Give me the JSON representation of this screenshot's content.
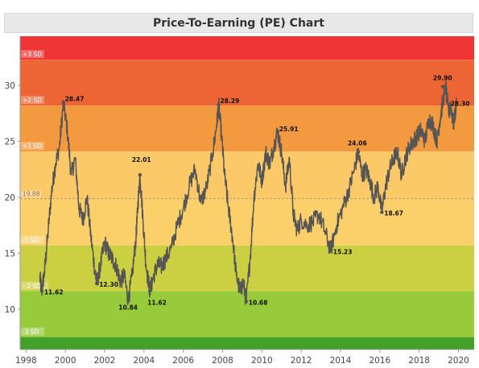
{
  "chart_data": {
    "type": "line",
    "title": "Price-To-Earning (PE) Chart",
    "xlabel": "",
    "ylabel": "",
    "xlim": [
      1997.7,
      2020.8
    ],
    "ylim": [
      6.4,
      34.4
    ],
    "x_ticks": [
      "1998",
      "2000",
      "2002",
      "2004",
      "2006",
      "2008",
      "2010",
      "2012",
      "2014",
      "2016",
      "2018",
      "2020"
    ],
    "y_ticks": [
      "10",
      "15",
      "20",
      "25",
      "30"
    ],
    "mean": {
      "label": "19.88",
      "value": 19.88
    },
    "bands": [
      {
        "label": "+3 SD",
        "from": 32.3,
        "to": 34.4,
        "color": "#ee3434"
      },
      {
        "label": "+2 SD",
        "from": 28.2,
        "to": 32.3,
        "color": "#ee6535"
      },
      {
        "label": "+1 SD",
        "from": 24.1,
        "to": 28.2,
        "color": "#f3993f"
      },
      {
        "label": "",
        "from": 19.88,
        "to": 24.1,
        "color": "#fbc968"
      },
      {
        "label": "-1 SD",
        "from": 15.7,
        "to": 19.88,
        "color": "#fbcf6a"
      },
      {
        "label": "- 2 SD",
        "from": 11.6,
        "to": 15.7,
        "color": "#cbcf42"
      },
      {
        "label": "-3 SD",
        "from": 7.5,
        "to": 11.6,
        "color": "#97cb3b"
      },
      {
        "label": "",
        "from": 6.4,
        "to": 7.5,
        "color": "#45a02a"
      }
    ],
    "annotations": [
      {
        "x": 1998.8,
        "y": 11.62,
        "label": "11.62"
      },
      {
        "x": 1999.9,
        "y": 28.47,
        "label": "28.47"
      },
      {
        "x": 2001.6,
        "y": 12.3,
        "label": "12.30"
      },
      {
        "x": 2003.2,
        "y": 10.84,
        "label": "10.84"
      },
      {
        "x": 2003.8,
        "y": 22.01,
        "label": "22.01"
      },
      {
        "x": 2004.3,
        "y": 11.62,
        "label": "11.62"
      },
      {
        "x": 2007.8,
        "y": 28.29,
        "label": "28.29"
      },
      {
        "x": 2009.2,
        "y": 10.68,
        "label": "10.68"
      },
      {
        "x": 2010.8,
        "y": 25.91,
        "label": "25.91"
      },
      {
        "x": 2013.5,
        "y": 15.23,
        "label": "15.23"
      },
      {
        "x": 2014.9,
        "y": 24.06,
        "label": "24.06"
      },
      {
        "x": 2016.1,
        "y": 18.67,
        "label": "18.67"
      },
      {
        "x": 2019.2,
        "y": 29.9,
        "label": "29.90"
      },
      {
        "x": 2019.6,
        "y": 28.3,
        "label": "28.30"
      }
    ],
    "series": [
      {
        "color": "#555555",
        "x": [
          1998.7,
          1998.8,
          1998.95,
          1999.1,
          1999.3,
          1999.5,
          1999.7,
          1999.9,
          2000.1,
          2000.3,
          2000.5,
          2000.7,
          2000.9,
          2001.1,
          2001.3,
          2001.5,
          2001.6,
          2001.8,
          2002.0,
          2002.2,
          2002.4,
          2002.6,
          2002.8,
          2003.0,
          2003.2,
          2003.4,
          2003.6,
          2003.7,
          2003.8,
          2003.95,
          2004.1,
          2004.3,
          2004.5,
          2004.7,
          2004.9,
          2005.1,
          2005.4,
          2005.7,
          2006.0,
          2006.3,
          2006.6,
          2006.9,
          2007.2,
          2007.5,
          2007.7,
          2007.8,
          2007.95,
          2008.1,
          2008.3,
          2008.5,
          2008.7,
          2008.9,
          2009.05,
          2009.2,
          2009.4,
          2009.6,
          2009.8,
          2010.0,
          2010.2,
          2010.4,
          2010.6,
          2010.8,
          2011.0,
          2011.2,
          2011.4,
          2011.6,
          2011.8,
          2012.0,
          2012.3,
          2012.6,
          2012.9,
          2013.2,
          2013.5,
          2013.8,
          2014.1,
          2014.4,
          2014.7,
          2014.9,
          2015.1,
          2015.3,
          2015.5,
          2015.7,
          2015.9,
          2016.1,
          2016.3,
          2016.5,
          2016.7,
          2016.9,
          2017.1,
          2017.3,
          2017.5,
          2017.7,
          2017.9,
          2018.1,
          2018.3,
          2018.5,
          2018.7,
          2018.9,
          2019.05,
          2019.2,
          2019.35,
          2019.5,
          2019.6,
          2019.75,
          2019.9
        ],
        "y": [
          12.9,
          11.62,
          13.5,
          16.5,
          20.5,
          23.0,
          24.5,
          28.47,
          26.0,
          22.0,
          23.5,
          19.0,
          18.0,
          20.0,
          16.5,
          13.5,
          12.3,
          14.0,
          16.0,
          15.0,
          14.5,
          13.8,
          12.5,
          13.0,
          10.84,
          13.0,
          16.5,
          19.5,
          22.01,
          18.0,
          14.0,
          11.62,
          13.0,
          14.0,
          13.8,
          14.5,
          15.5,
          17.5,
          19.0,
          21.0,
          22.5,
          19.5,
          21.0,
          24.0,
          26.5,
          28.29,
          25.5,
          22.0,
          19.0,
          16.5,
          13.0,
          11.5,
          12.5,
          10.68,
          14.5,
          20.0,
          23.0,
          21.5,
          24.0,
          23.0,
          24.5,
          25.91,
          24.0,
          21.0,
          23.5,
          18.5,
          17.0,
          18.0,
          17.5,
          17.8,
          18.5,
          17.0,
          15.23,
          17.5,
          19.0,
          20.5,
          22.5,
          24.06,
          22.0,
          22.5,
          21.5,
          20.0,
          21.0,
          18.67,
          21.0,
          22.5,
          23.5,
          24.0,
          22.0,
          23.5,
          24.5,
          25.0,
          25.5,
          26.0,
          25.0,
          27.0,
          26.5,
          25.0,
          26.8,
          28.5,
          29.9,
          27.5,
          28.3,
          26.5,
          28.4
        ]
      }
    ],
    "grid": false,
    "legend": "none"
  }
}
